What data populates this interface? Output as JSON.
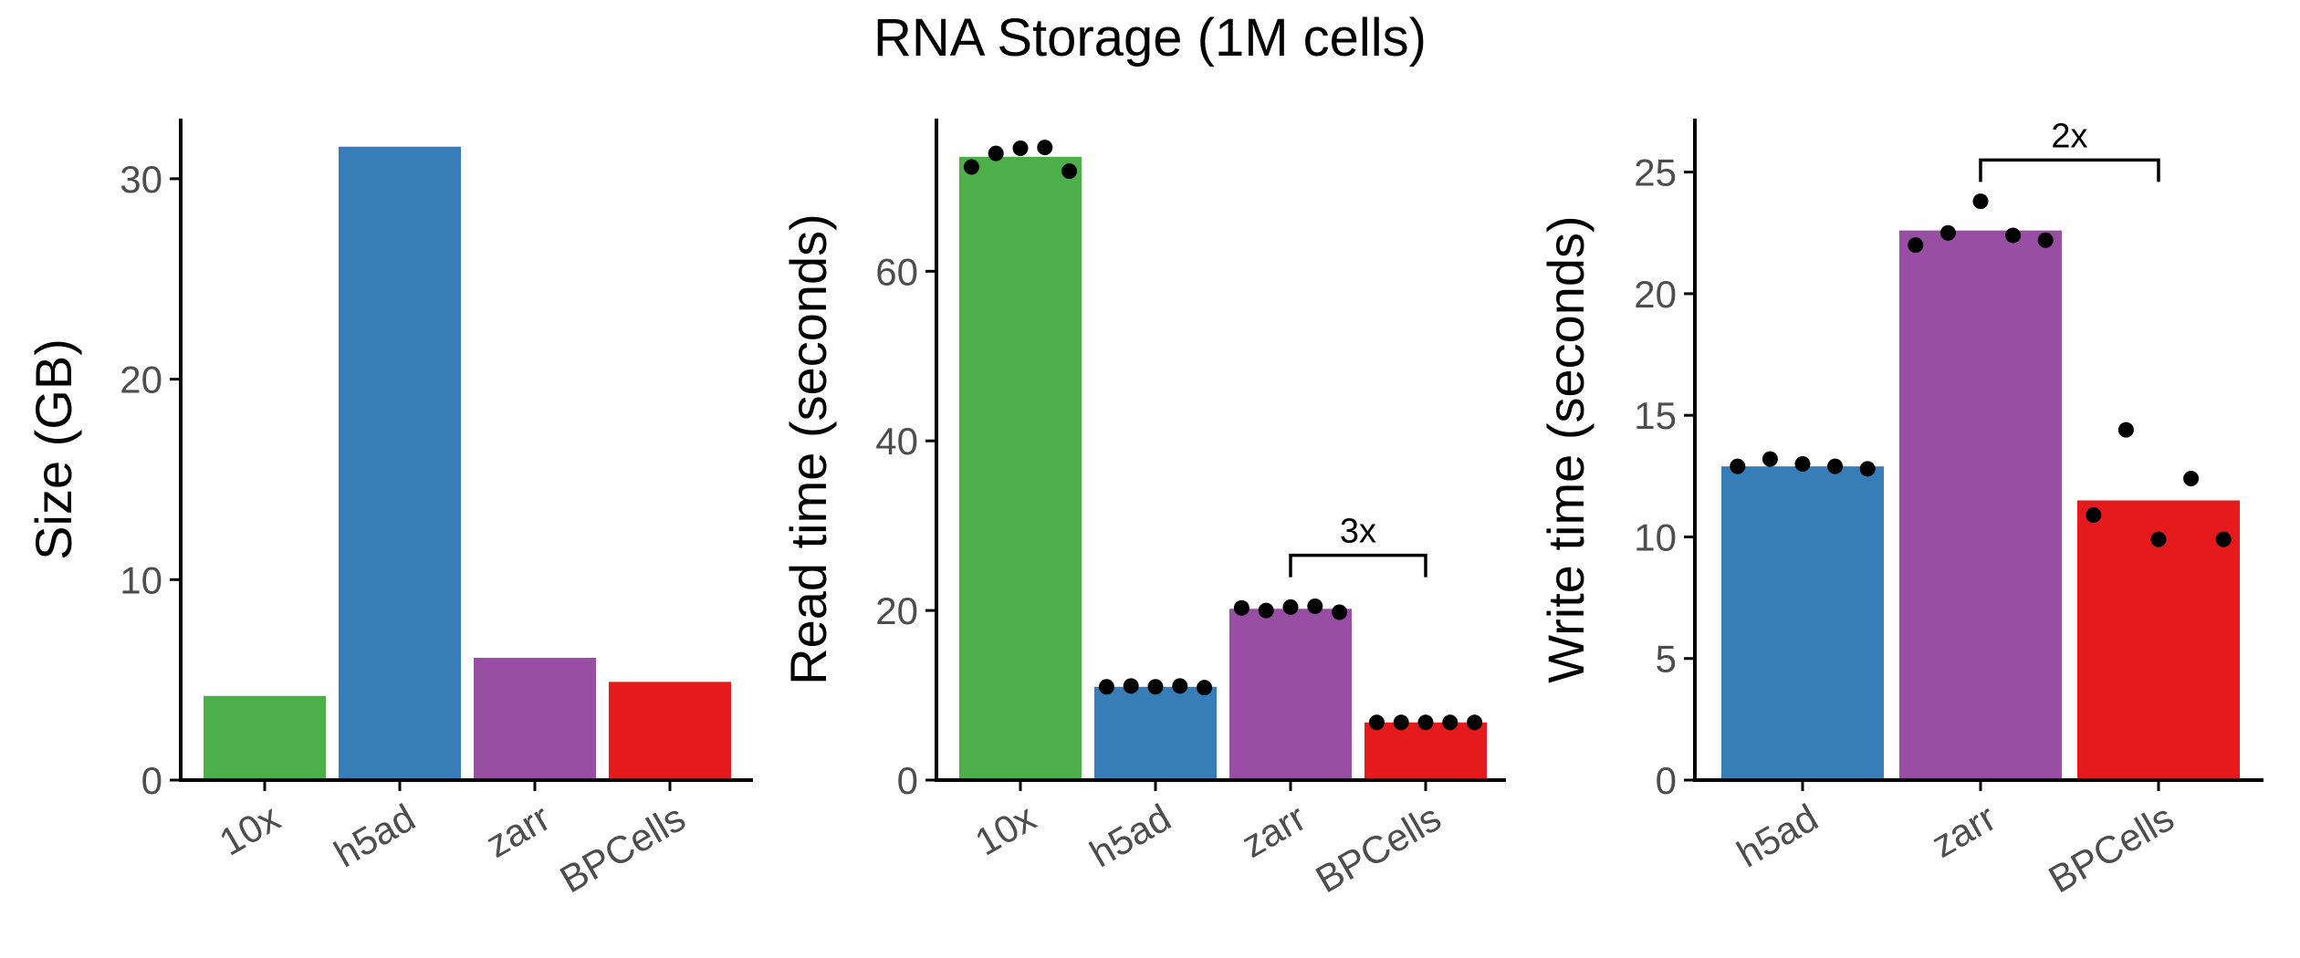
{
  "title": "RNA Storage (1M cells)",
  "colors": {
    "10x": "#4DAF4A",
    "h5ad": "#377EB8",
    "zarr": "#984EA3",
    "BPCells": "#E41A1C",
    "points": "#000000",
    "axis": "#000000"
  },
  "chart_data": [
    {
      "type": "bar",
      "categories": [
        "10x",
        "h5ad",
        "zarr",
        "BPCells"
      ],
      "values": [
        4.2,
        31.6,
        6.1,
        4.9
      ],
      "ylabel": "Size (GB)",
      "ylim": [
        0,
        33
      ],
      "yticks": [
        0,
        10,
        20,
        30
      ],
      "points": [],
      "annotation": null
    },
    {
      "type": "bar",
      "categories": [
        "10x",
        "h5ad",
        "zarr",
        "BPCells"
      ],
      "values": [
        73.5,
        11.0,
        20.2,
        6.8
      ],
      "ylabel": "Read time (seconds)",
      "ylim": [
        0,
        78
      ],
      "yticks": [
        0,
        20,
        40,
        60
      ],
      "points": [
        [
          72.3,
          73.9,
          74.5,
          74.6,
          71.8
        ],
        [
          11.0,
          11.1,
          11.0,
          11.1,
          10.9
        ],
        [
          20.3,
          20.0,
          20.4,
          20.5,
          19.8
        ],
        [
          6.8,
          6.8,
          6.8,
          6.8,
          6.8
        ]
      ],
      "annotation": {
        "from": "zarr",
        "to": "BPCells",
        "y": 26.5,
        "label": "3x"
      }
    },
    {
      "type": "bar",
      "categories": [
        "h5ad",
        "zarr",
        "BPCells"
      ],
      "values": [
        12.9,
        22.6,
        11.5
      ],
      "ylabel": "Write time (seconds)",
      "ylim": [
        0,
        27.2
      ],
      "yticks": [
        0,
        5,
        10,
        15,
        20,
        25
      ],
      "points": [
        [
          12.9,
          13.2,
          13.0,
          12.9,
          12.8
        ],
        [
          22.0,
          22.5,
          23.8,
          22.4,
          22.2
        ],
        [
          10.9,
          14.4,
          9.9,
          12.4,
          9.9
        ]
      ],
      "annotation": {
        "from": "zarr",
        "to": "BPCells",
        "y": 25.5,
        "label": "2x"
      }
    }
  ]
}
